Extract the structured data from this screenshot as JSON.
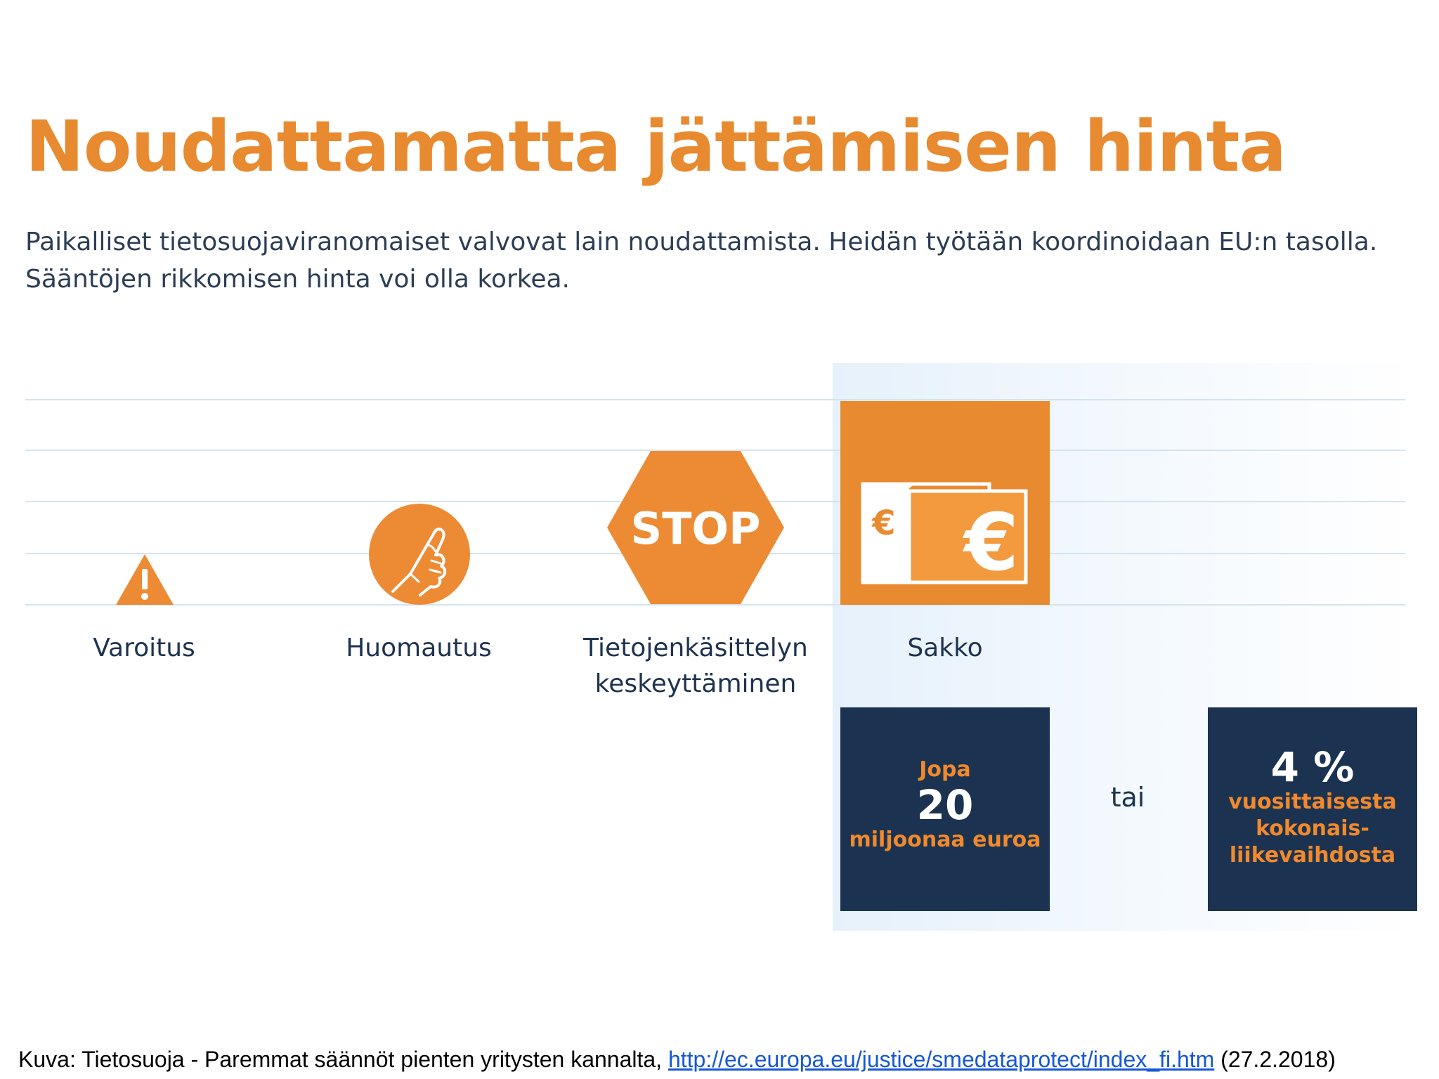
{
  "colors": {
    "accent": "#e88a2f",
    "navy": "#1b3350",
    "fine_orange": "#f1892d"
  },
  "title": "Noudattamatta jättämisen hinta",
  "intro": {
    "line1": "Paikalliset tietosuojaviranomaiset valvovat lain noudattamista. Heidän työtään koordinoidaan EU:n tasolla.",
    "line2": "Sääntöjen rikkomisen hinta voi olla korkea."
  },
  "levels": [
    {
      "icon": "warning-triangle-icon",
      "label": [
        "Varoitus"
      ]
    },
    {
      "icon": "pointing-finger-icon",
      "label": [
        "Huomautus"
      ]
    },
    {
      "icon": "stop-sign-icon",
      "icon_text": "STOP",
      "label": [
        "Tietojenkäsittelyn",
        "keskeyttäminen"
      ]
    },
    {
      "icon": "euro-banknotes-icon",
      "label": [
        "Sakko"
      ]
    }
  ],
  "fines": {
    "left": {
      "top": "Jopa",
      "big": "20",
      "bottom": "miljoonaa euroa"
    },
    "connector": "tai",
    "right": {
      "big": "4 %",
      "lines": [
        "vuosittaisesta",
        "kokonais-",
        "liikevaihdosta"
      ]
    }
  },
  "caption": {
    "prefix": "Kuva: Tietosuoja - Paremmat säännöt pienten yritysten kannalta, ",
    "link": "http://ec.europa.eu/justice/smedataprotect/index_fi.htm",
    "suffix": " (27.2.2018)"
  }
}
